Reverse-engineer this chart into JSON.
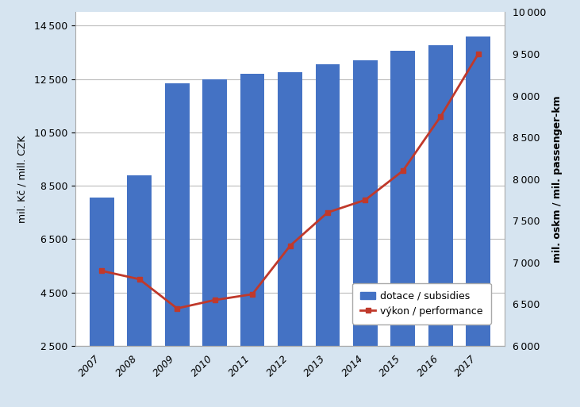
{
  "years": [
    2007,
    2008,
    2009,
    2010,
    2011,
    2012,
    2013,
    2014,
    2015,
    2016,
    2017
  ],
  "subsidies": [
    8050,
    8900,
    12350,
    12500,
    12700,
    12750,
    13050,
    13200,
    13550,
    13750,
    14100
  ],
  "performance": [
    6900,
    6800,
    6450,
    6550,
    6620,
    7200,
    7600,
    7750,
    8100,
    8750,
    9500
  ],
  "bar_color": "#4472C4",
  "line_color": "#C0392B",
  "background_color": "#D6E4F0",
  "plot_background": "#FFFFFF",
  "left_ylabel": "mil. Kč / mill. CZK",
  "right_ylabel": "mil. oskm / mil. passenger-km",
  "left_ylim": [
    2500,
    15000
  ],
  "right_ylim": [
    6000,
    10000
  ],
  "left_yticks": [
    2500,
    4500,
    6500,
    8500,
    10500,
    12500,
    14500
  ],
  "right_yticks": [
    6000,
    6500,
    7000,
    7500,
    8000,
    8500,
    9000,
    9500,
    10000
  ],
  "legend_subsidies": "dotace / subsidies",
  "legend_performance": "výkon / performance",
  "axis_fontsize": 9,
  "tick_fontsize": 9,
  "legend_fontsize": 9
}
